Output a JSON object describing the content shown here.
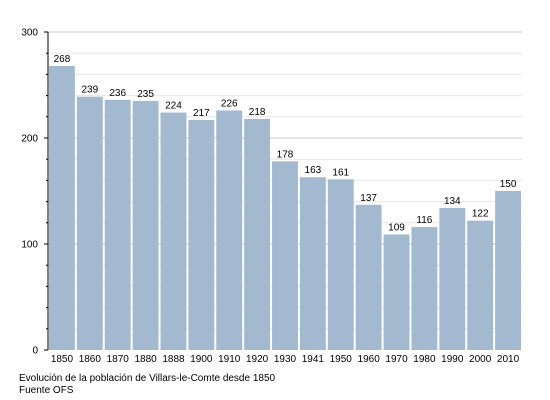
{
  "chart_data": {
    "type": "bar",
    "categories": [
      "1850",
      "1860",
      "1870",
      "1880",
      "1888",
      "1900",
      "1910",
      "1920",
      "1930",
      "1941",
      "1950",
      "1960",
      "1970",
      "1980",
      "1990",
      "2000",
      "2010"
    ],
    "values": [
      268,
      239,
      236,
      235,
      224,
      217,
      226,
      218,
      178,
      163,
      161,
      137,
      109,
      116,
      134,
      122,
      150
    ],
    "ylim": [
      0,
      300
    ],
    "yticks": [
      0,
      100,
      200,
      300
    ],
    "grid": true,
    "bar_color": "#a3b9d0"
  },
  "caption": {
    "line1": "Evolución de la población de Villars-le-Comte desde 1850",
    "line2": "Fuente OFS"
  }
}
